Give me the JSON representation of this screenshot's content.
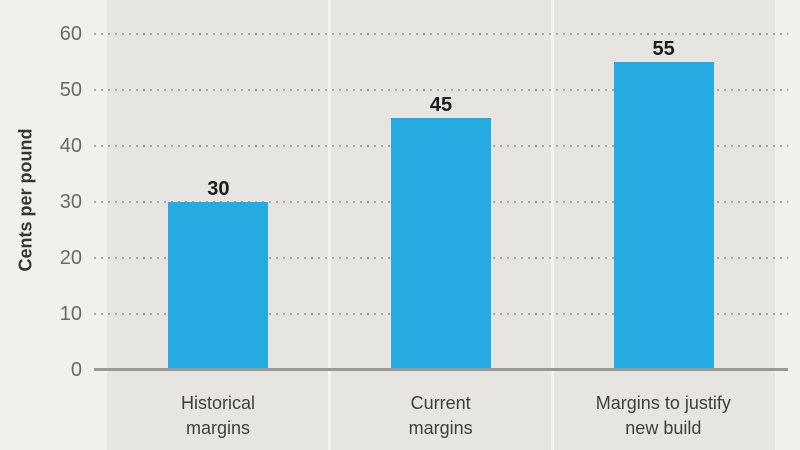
{
  "chart_data": {
    "type": "bar",
    "title": "",
    "xlabel": "",
    "ylabel": "Cents per pound",
    "categories": [
      "Historical\nmargins",
      "Current\nmargins",
      "Margins to justify\nnew build"
    ],
    "values": [
      30,
      45,
      55
    ],
    "value_labels": [
      "30",
      "45",
      "55"
    ],
    "ylim": [
      0,
      60
    ],
    "yticks": [
      0,
      10,
      20,
      30,
      40,
      50,
      60
    ],
    "grid": "horizontal-dotted",
    "legend": "none",
    "colors": {
      "bar": "#25aae1",
      "background": "#f1f0ed",
      "plot_band": "#e6e5e2",
      "band_separator": "#f3f2ef",
      "gridline": "#a9a7a4",
      "axis_line": "#9a9896",
      "value_label": "#1d1c1a",
      "tick_label": "#6b6965",
      "category_label": "#413f3c",
      "axis_title": "#383633"
    }
  }
}
